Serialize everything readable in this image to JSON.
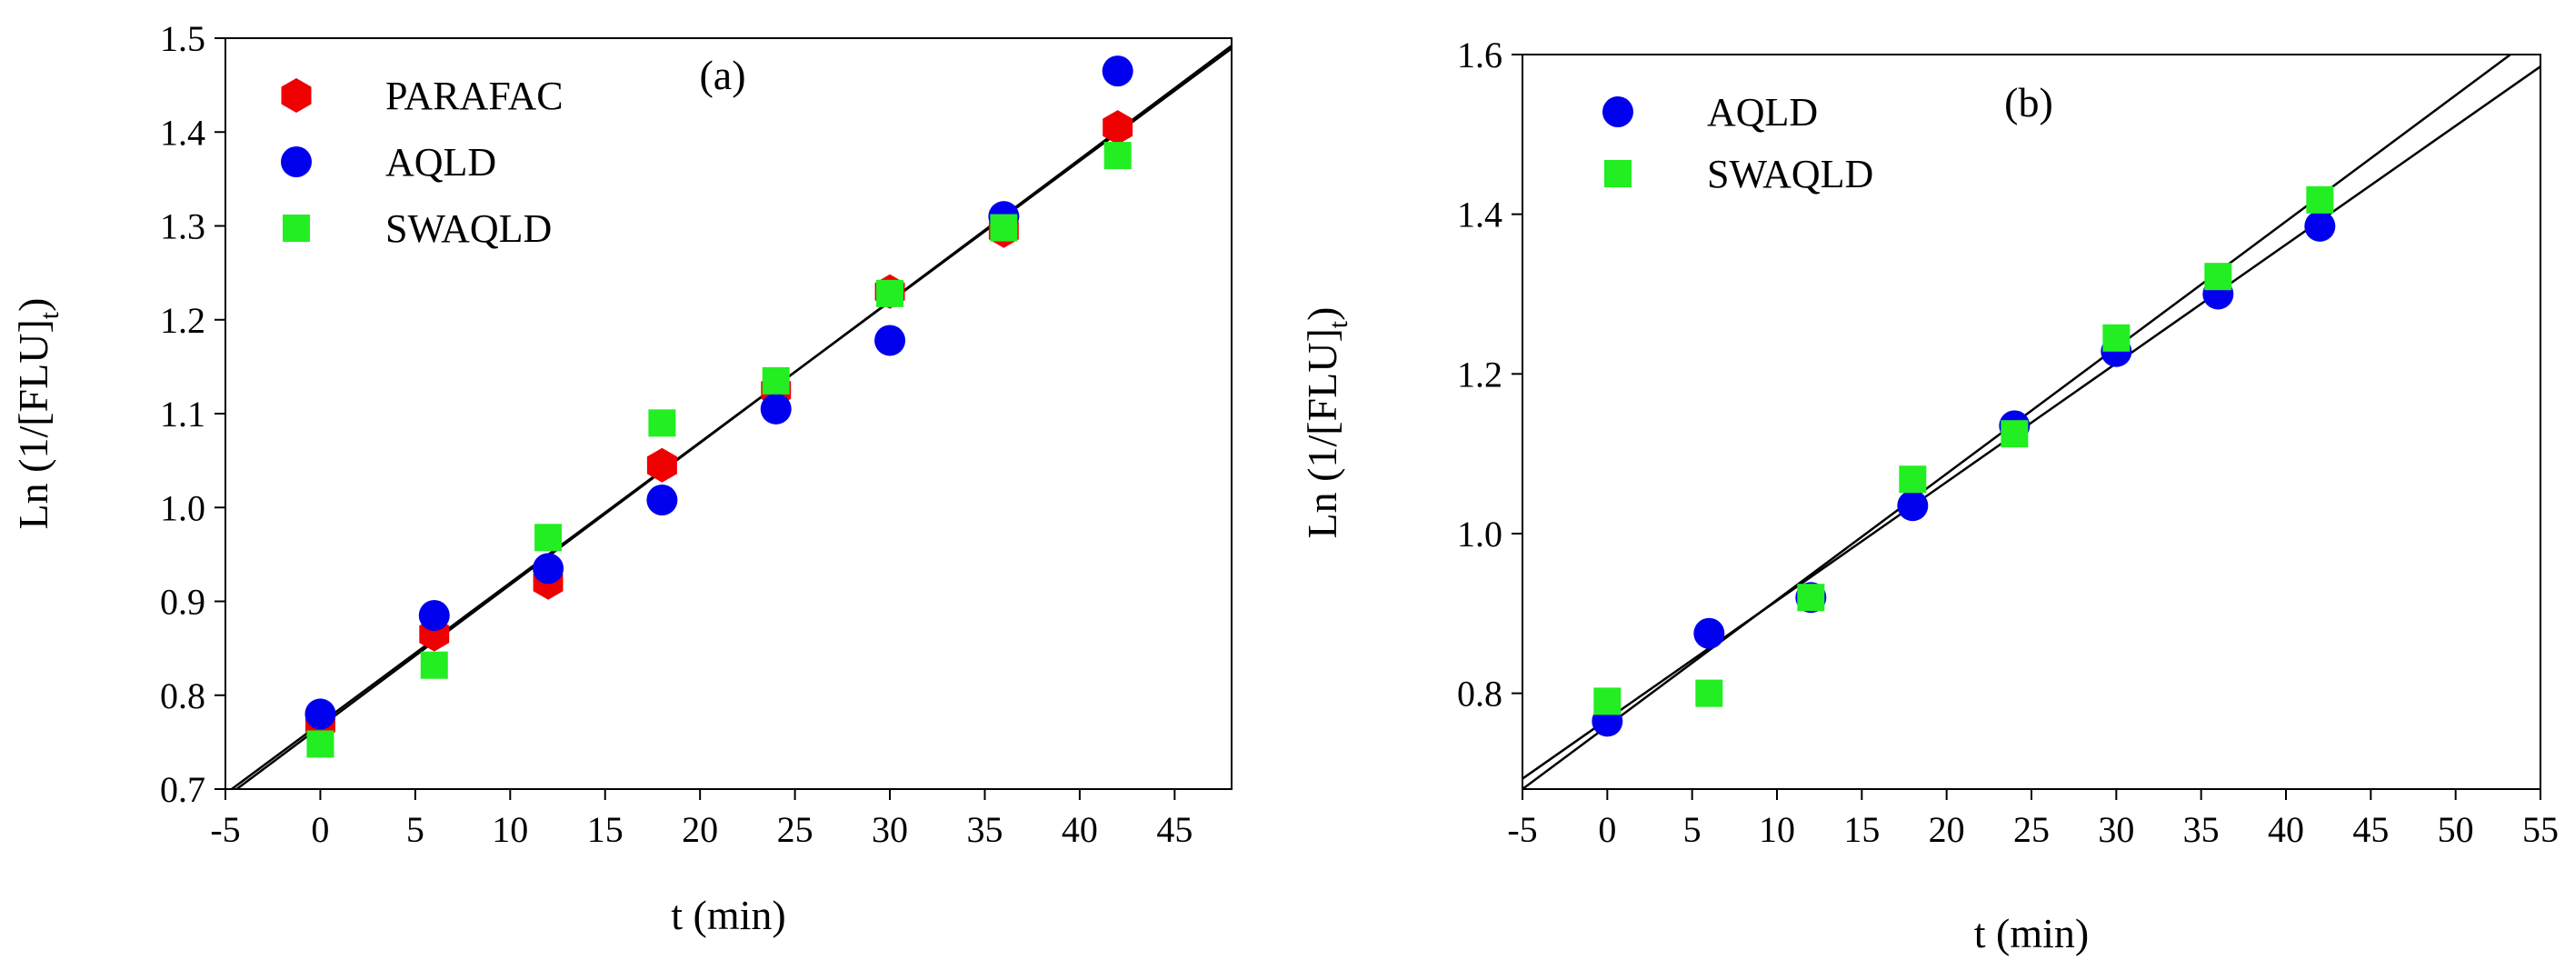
{
  "chart_data": [
    {
      "type": "scatter",
      "panel_label": "(a)",
      "xlabel": "t (min)",
      "ylabel_main": "Ln (1/[FLU]",
      "ylabel_sub": "t",
      "ylabel_close": ")",
      "xlim": [
        -5,
        48
      ],
      "ylim": [
        0.7,
        1.5
      ],
      "xticks": [
        -5,
        0,
        5,
        10,
        15,
        20,
        25,
        30,
        35,
        40,
        45
      ],
      "xtick_labels": [
        "-5",
        "0",
        "5",
        "10",
        "15",
        "20",
        "25",
        "30",
        "35",
        "40",
        "45"
      ],
      "yticks": [
        0.7,
        0.8,
        0.9,
        1.0,
        1.1,
        1.2,
        1.3,
        1.4,
        1.5
      ],
      "ytick_labels": [
        "0.7",
        "0.8",
        "0.9",
        "1.0",
        "1.1",
        "1.2",
        "1.3",
        "1.4",
        "1.5"
      ],
      "legend_position": "top-left",
      "series": [
        {
          "name": "PARAFAC",
          "marker": "hexagon",
          "color": "#ee0000",
          "x": [
            0,
            6,
            12,
            18,
            24,
            30,
            36,
            42
          ],
          "y": [
            0.77,
            0.865,
            0.92,
            1.045,
            1.125,
            1.23,
            1.295,
            1.405
          ]
        },
        {
          "name": "AQLD",
          "marker": "circle",
          "color": "#0000ee",
          "x": [
            0,
            6,
            12,
            18,
            24,
            30,
            36,
            42
          ],
          "y": [
            0.78,
            0.885,
            0.935,
            1.008,
            1.105,
            1.178,
            1.31,
            1.465
          ]
        },
        {
          "name": "SWAQLD",
          "marker": "square",
          "color": "#22ee22",
          "x": [
            0,
            6,
            12,
            18,
            24,
            30,
            36,
            42
          ],
          "y": [
            0.748,
            0.832,
            0.968,
            1.09,
            1.135,
            1.228,
            1.298,
            1.375
          ]
        }
      ],
      "fit_lines": [
        {
          "x": [
            -5,
            48
          ],
          "y": [
            0.691,
            1.492
          ]
        },
        {
          "x": [
            -5,
            48
          ],
          "y": [
            0.695,
            1.489
          ]
        }
      ]
    },
    {
      "type": "scatter",
      "panel_label": "(b)",
      "xlabel": "t (min)",
      "ylabel_main": "Ln (1/[FLU]",
      "ylabel_sub": "t",
      "ylabel_close": ")",
      "xlim": [
        -5,
        55
      ],
      "ylim": [
        0.68,
        1.6
      ],
      "xticks": [
        -5,
        0,
        5,
        10,
        15,
        20,
        25,
        30,
        35,
        40,
        45,
        50,
        55
      ],
      "xtick_labels": [
        "-5",
        "0",
        "5",
        "10",
        "15",
        "20",
        "25",
        "30",
        "35",
        "40",
        "45",
        "50",
        "55"
      ],
      "yticks": [
        0.8,
        1.0,
        1.2,
        1.4,
        1.6
      ],
      "ytick_labels": [
        "0.8",
        "1.0",
        "1.2",
        "1.4",
        "1.6"
      ],
      "legend_position": "top-left",
      "series": [
        {
          "name": "AQLD",
          "marker": "circle",
          "color": "#0000ee",
          "x": [
            0,
            6,
            12,
            18,
            24,
            30,
            36,
            42
          ],
          "y": [
            0.765,
            0.875,
            0.92,
            1.035,
            1.135,
            1.228,
            1.3,
            1.385
          ]
        },
        {
          "name": "SWAQLD",
          "marker": "square",
          "color": "#22ee22",
          "x": [
            0,
            6,
            12,
            18,
            24,
            30,
            36,
            42
          ],
          "y": [
            0.79,
            0.8,
            0.92,
            1.068,
            1.125,
            1.245,
            1.322,
            1.418
          ]
        }
      ],
      "fit_lines": [
        {
          "x": [
            -5,
            55
          ],
          "y": [
            0.693,
            1.585
          ]
        },
        {
          "x": [
            -5,
            55
          ],
          "y": [
            0.68,
            1.628
          ]
        }
      ]
    }
  ]
}
